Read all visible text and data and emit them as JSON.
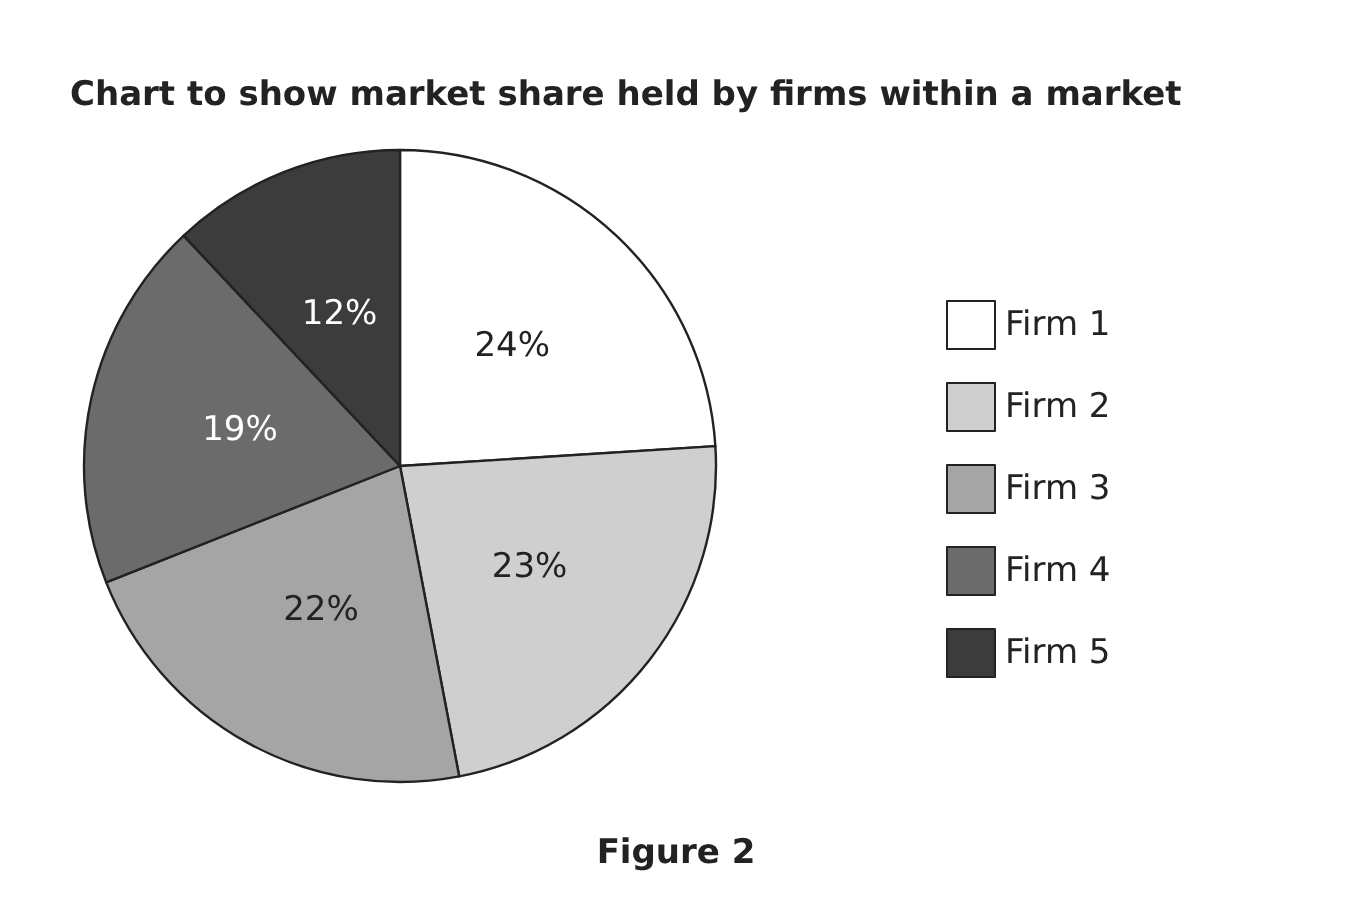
{
  "chart_data": {
    "type": "pie",
    "title": "Chart to show market share held by firms within a market",
    "categories": [
      "Firm 1",
      "Firm 2",
      "Firm 3",
      "Firm 4",
      "Firm 5"
    ],
    "values": [
      24,
      23,
      22,
      19,
      12
    ],
    "colors": [
      "#ffffff",
      "#cfcfcf",
      "#a5a5a5",
      "#6b6b6b",
      "#3c3c3c"
    ],
    "value_labels": [
      "24%",
      "23%",
      "22%",
      "19%",
      "12%"
    ],
    "legend": "right",
    "annotations": [
      "Figure 2"
    ]
  }
}
